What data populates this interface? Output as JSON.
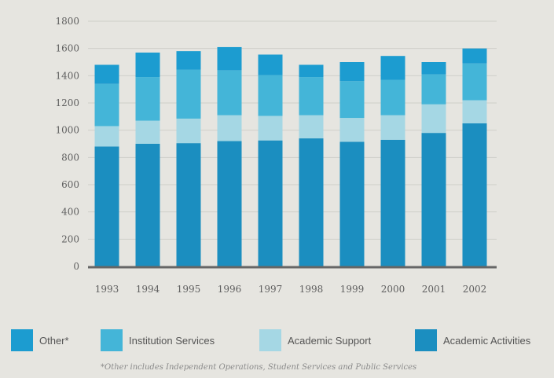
{
  "chart_data": {
    "type": "bar",
    "stacked": true,
    "title": "",
    "xlabel": "",
    "ylabel": "",
    "ylim": [
      0,
      1800
    ],
    "yticks": [
      0,
      200,
      400,
      600,
      800,
      1000,
      1200,
      1400,
      1600,
      1800
    ],
    "grid": true,
    "legend_position": "bottom",
    "categories": [
      "1993",
      "1994",
      "1995",
      "1996",
      "1997",
      "1998",
      "1999",
      "2000",
      "2001",
      "2002"
    ],
    "series": [
      {
        "name": "Academic Activities",
        "color": "#1b8ec0",
        "values": [
          880,
          900,
          905,
          920,
          925,
          940,
          915,
          930,
          980,
          1050
        ]
      },
      {
        "name": "Academic Support",
        "color": "#a5d7e4",
        "values": [
          150,
          170,
          180,
          190,
          180,
          170,
          175,
          180,
          210,
          170
        ]
      },
      {
        "name": "Institution Services",
        "color": "#44b5d8",
        "values": [
          310,
          320,
          360,
          330,
          300,
          280,
          270,
          260,
          220,
          270
        ]
      },
      {
        "name": "Other*",
        "color": "#1c9cd0",
        "values": [
          140,
          180,
          135,
          170,
          150,
          90,
          140,
          175,
          90,
          110
        ]
      }
    ],
    "legend_order": [
      "Other*",
      "Institution Services",
      "Academic Support",
      "Academic Activities"
    ],
    "footnote": "*Other includes Independent Operations, Student Services and Public Services"
  }
}
